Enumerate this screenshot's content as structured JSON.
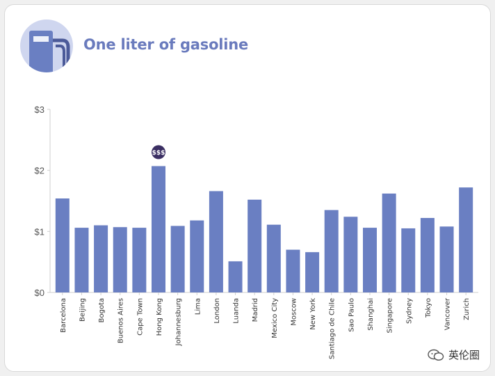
{
  "header": {
    "title": "One liter of gasoline",
    "icon": "gas-pump-icon"
  },
  "highlight": {
    "label": "$$$",
    "category": "Hong Kong"
  },
  "watermark": {
    "text": "英伦圈",
    "icon": "wechat-icon"
  },
  "colors": {
    "bar": "#6a7fc2",
    "accent": "#6a7bbd",
    "badge": "#3b2f63",
    "icon_bg": "#cfd6ef"
  },
  "chart_data": {
    "type": "bar",
    "title": "",
    "xlabel": "",
    "ylabel": "",
    "ylim": [
      0,
      3
    ],
    "y_ticks": [
      {
        "value": 0,
        "label": "$0"
      },
      {
        "value": 1,
        "label": "$1"
      },
      {
        "value": 2,
        "label": "$2"
      },
      {
        "value": 3,
        "label": "$3"
      }
    ],
    "categories": [
      "Barcelona",
      "Beijing",
      "Bogota",
      "Buenos Aires",
      "Cape Town",
      "Hong Kong",
      "Johannesburg",
      "Lima",
      "London",
      "Luanda",
      "Madrid",
      "Mexico City",
      "Moscow",
      "New York",
      "Santiago de Chile",
      "Sao Paulo",
      "Shanghai",
      "Singapore",
      "Sydney",
      "Tokyo",
      "Vancover",
      "Zurich"
    ],
    "values": [
      1.54,
      1.06,
      1.1,
      1.07,
      1.06,
      2.07,
      1.09,
      1.18,
      1.66,
      0.51,
      1.52,
      1.11,
      0.7,
      0.66,
      1.35,
      1.24,
      1.06,
      1.62,
      1.05,
      1.22,
      1.08,
      1.72
    ],
    "grid": false
  }
}
